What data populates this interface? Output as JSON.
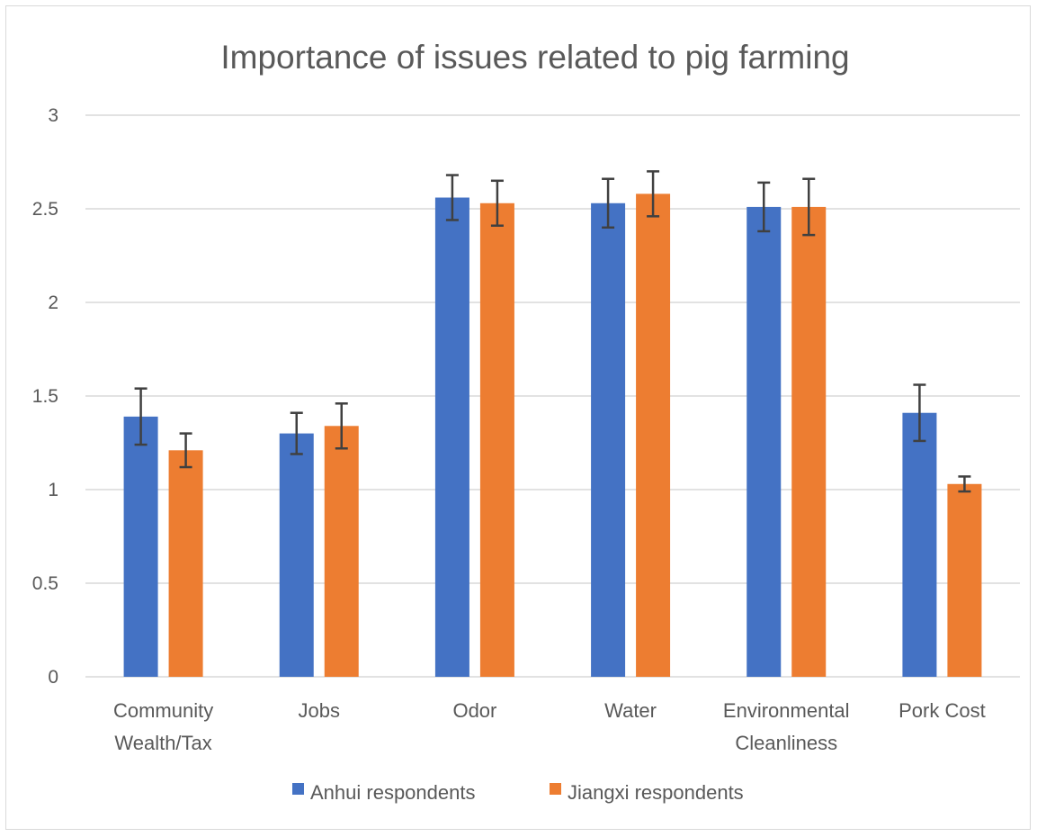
{
  "chart_data": {
    "type": "bar",
    "title": "Importance of issues related to pig farming",
    "categories": [
      [
        "Community",
        "Wealth/Tax"
      ],
      [
        "Jobs"
      ],
      [
        "Odor"
      ],
      [
        "Water"
      ],
      [
        "Environmental",
        "Cleanliness"
      ],
      [
        "Pork Cost"
      ]
    ],
    "series": [
      {
        "name": "Anhui respondents",
        "color": "#4472C4",
        "values": [
          1.39,
          1.3,
          2.56,
          2.53,
          2.51,
          1.41
        ],
        "error": [
          0.15,
          0.11,
          0.12,
          0.13,
          0.13,
          0.15
        ]
      },
      {
        "name": "Jiangxi respondents",
        "color": "#ED7D31",
        "values": [
          1.21,
          1.34,
          2.53,
          2.58,
          2.51,
          1.03
        ],
        "error": [
          0.09,
          0.12,
          0.12,
          0.12,
          0.15,
          0.04
        ]
      }
    ],
    "y_ticks": [
      "0",
      "0.5",
      "1",
      "1.5",
      "2",
      "2.5",
      "3"
    ],
    "ylim": [
      0,
      3
    ],
    "grid": true,
    "legend_position": "bottom",
    "gridline_color": "#d9d9d9",
    "errorbar_color": "#404040"
  }
}
